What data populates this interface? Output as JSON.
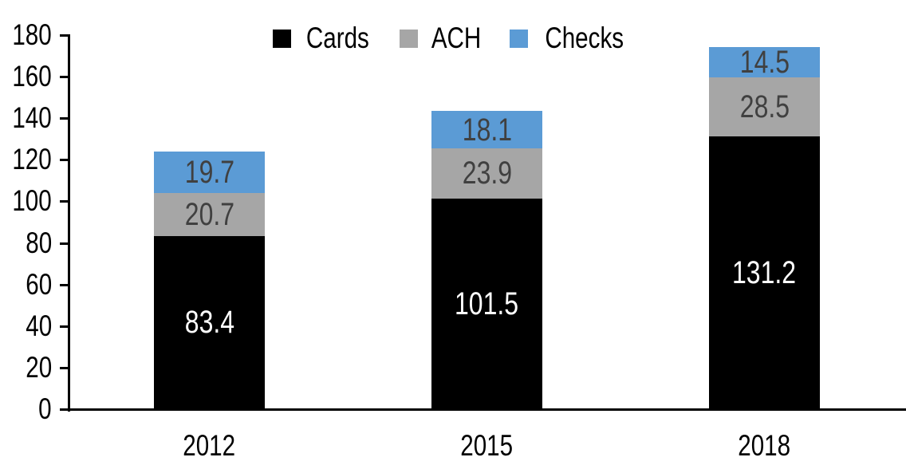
{
  "chart_data": {
    "type": "bar",
    "stacked": true,
    "title": "",
    "xlabel": "",
    "ylabel": "",
    "categories": [
      "2012",
      "2015",
      "2018"
    ],
    "series": [
      {
        "name": "Cards",
        "color": "#000000",
        "label_color": "#ffffff",
        "values": [
          83.4,
          101.5,
          131.2
        ]
      },
      {
        "name": "ACH",
        "color": "#a6a6a6",
        "label_color": "#404040",
        "values": [
          20.7,
          23.9,
          28.5
        ]
      },
      {
        "name": "Checks",
        "color": "#5b9bd5",
        "label_color": "#404040",
        "values": [
          19.7,
          18.1,
          14.5
        ]
      }
    ],
    "totals": [
      123.8,
      143.5,
      174.2
    ],
    "ylim": [
      0,
      180
    ],
    "ytick_step": 20,
    "yticks": [
      0,
      20,
      40,
      60,
      80,
      100,
      120,
      140,
      160,
      180
    ],
    "grid": false,
    "legend_position": "top-center",
    "axis_color": "#000000"
  }
}
